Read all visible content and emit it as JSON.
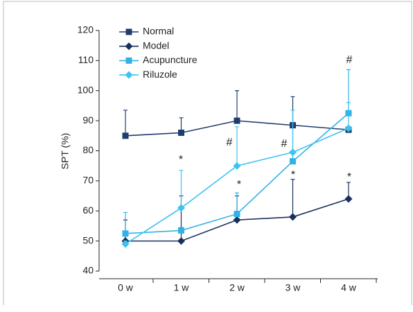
{
  "chart_data": {
    "type": "line",
    "ylabel": "SPT (%)",
    "categories": [
      "0 w",
      "1 w",
      "2 w",
      "3 w",
      "4 w"
    ],
    "ylim": [
      40,
      120
    ],
    "yticks": [
      40,
      50,
      60,
      70,
      80,
      90,
      100,
      110,
      120
    ],
    "series": [
      {
        "name": "Normal",
        "color": "#1f3c6e",
        "marker": "square",
        "values": [
          85,
          86,
          90,
          88.5,
          87
        ],
        "errors": [
          8.5,
          5,
          10,
          9.5,
          1
        ]
      },
      {
        "name": "Model",
        "color": "#1a2f5a",
        "marker": "diamond",
        "values": [
          50,
          50,
          57,
          58,
          64
        ],
        "errors": [
          7,
          15,
          8,
          12.5,
          5.5
        ]
      },
      {
        "name": "Acupuncture",
        "color": "#2fb2e6",
        "marker": "square",
        "values": [
          52.5,
          53.5,
          59,
          76.5,
          92.5
        ],
        "errors": [
          7,
          1,
          7,
          17,
          14.5
        ]
      },
      {
        "name": "Riluzole",
        "color": "#3cc3f0",
        "marker": "diamond",
        "values": [
          49,
          61,
          75,
          79.5,
          87.5
        ],
        "errors": [
          1,
          12.5,
          13,
          14,
          8.5
        ]
      }
    ],
    "annotations": [
      "*",
      "#",
      "*",
      "#",
      "*",
      "#",
      "*"
    ]
  }
}
